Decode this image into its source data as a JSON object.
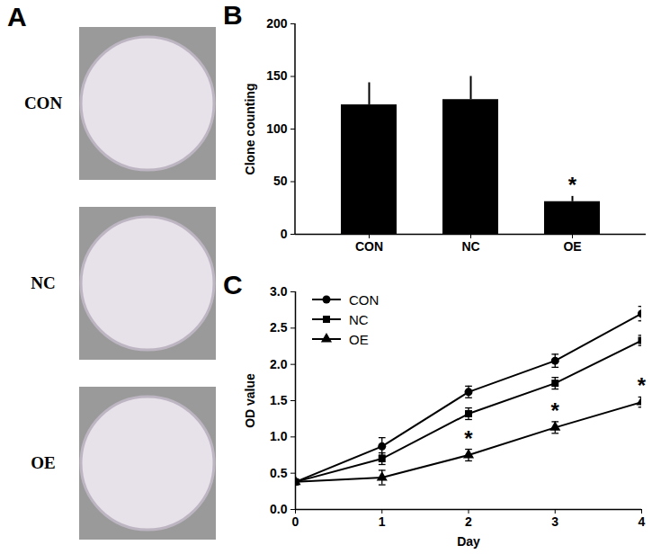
{
  "images": {
    "panel": "A",
    "labels": [
      "CON",
      "NC",
      "OE"
    ]
  },
  "chart_data": [
    {
      "panel": "B",
      "type": "bar",
      "categories": [
        "CON",
        "NC",
        "OE"
      ],
      "values": [
        123,
        128,
        31
      ],
      "errors": [
        21,
        22,
        5
      ],
      "color": "#000000",
      "ylabel": "Clone counting",
      "ylim": [
        0,
        200
      ],
      "yticks": [
        0,
        50,
        100,
        150,
        200
      ],
      "annotations": [
        {
          "category": "OE",
          "text": "*"
        }
      ]
    },
    {
      "panel": "C",
      "type": "line",
      "xlabel": "Day",
      "ylabel": "OD value",
      "x": [
        0,
        1,
        2,
        3,
        4
      ],
      "xlim": [
        0,
        4
      ],
      "xticks": [
        0,
        1,
        2,
        3,
        4
      ],
      "ylim": [
        0,
        3
      ],
      "yticks": [
        {
          "value": 0,
          "label": "0.0"
        },
        {
          "value": 0.5,
          "label": "0.5"
        },
        {
          "value": 1,
          "label": "1.0"
        },
        {
          "value": 1.5,
          "label": "1.5"
        },
        {
          "value": 2,
          "label": "2.0"
        },
        {
          "value": 2.5,
          "label": "2.5"
        },
        {
          "value": 3,
          "label": "3.0"
        }
      ],
      "legend": "top-left",
      "series": [
        {
          "name": "CON",
          "color": "#000000",
          "marker": "circle",
          "values": [
            0.38,
            0.87,
            1.62,
            2.05,
            2.7
          ],
          "errors": [
            0.03,
            0.12,
            0.08,
            0.09,
            0.1
          ]
        },
        {
          "name": "NC",
          "color": "#000000",
          "marker": "square",
          "values": [
            0.38,
            0.7,
            1.32,
            1.74,
            2.33
          ],
          "errors": [
            0.02,
            0.08,
            0.08,
            0.08,
            0.07
          ]
        },
        {
          "name": "OE",
          "color": "#000000",
          "marker": "triangle",
          "values": [
            0.38,
            0.44,
            0.75,
            1.13,
            1.48
          ],
          "errors": [
            0.02,
            0.1,
            0.08,
            0.08,
            0.07
          ]
        }
      ],
      "annotations": [
        {
          "series": "OE",
          "x": 2,
          "text": "*"
        },
        {
          "series": "OE",
          "x": 3,
          "text": "*"
        },
        {
          "series": "OE",
          "x": 4,
          "text": "*"
        }
      ]
    }
  ]
}
